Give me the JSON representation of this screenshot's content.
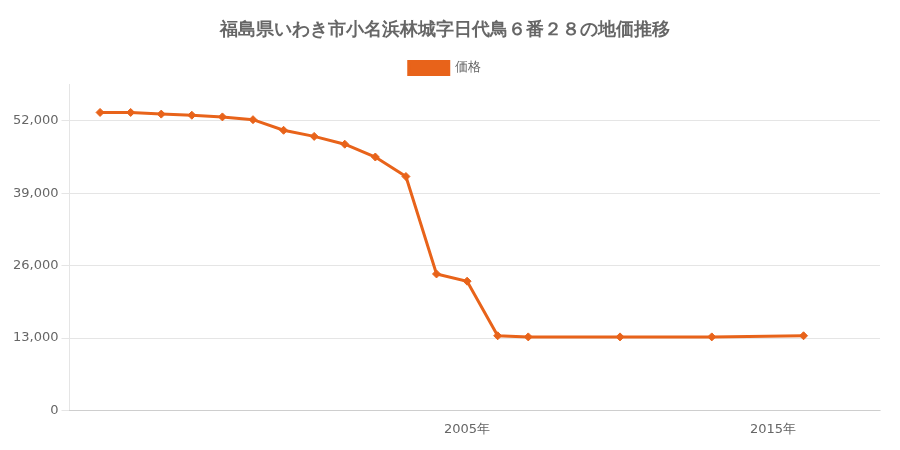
{
  "chart_data": {
    "type": "line",
    "title": "福島県いわき市小名浜林城字日代鳥６番２８の地価推移",
    "series": [
      {
        "name": "価格",
        "color": "#e8631a",
        "marker": "diamond",
        "values": [
          53500,
          53500,
          53200,
          53000,
          52700,
          52200,
          50300,
          49200,
          47800,
          45500,
          42000,
          24500,
          23200,
          13400,
          13200,
          13200,
          13200,
          13400
        ]
      }
    ],
    "x": [
      1993,
      1994,
      1995,
      1996,
      1997,
      1998,
      1999,
      2000,
      2001,
      2002,
      2003,
      2004,
      2005,
      2006,
      2007,
      2010,
      2013,
      2016
    ],
    "xlim": [
      1992.0,
      2018.5
    ],
    "xticks": [
      {
        "value": 2005,
        "label": "2005年"
      },
      {
        "value": 2015,
        "label": "2015年"
      }
    ],
    "ylim": [
      0,
      58500
    ],
    "yticks": [
      0,
      {
        "value": 13000,
        "label": "13,000"
      },
      {
        "value": 26000,
        "label": "26,000"
      },
      {
        "value": 39000,
        "label": "39,000"
      },
      {
        "value": 52000,
        "label": "52,000"
      }
    ],
    "grid": "y",
    "legend": "top"
  }
}
